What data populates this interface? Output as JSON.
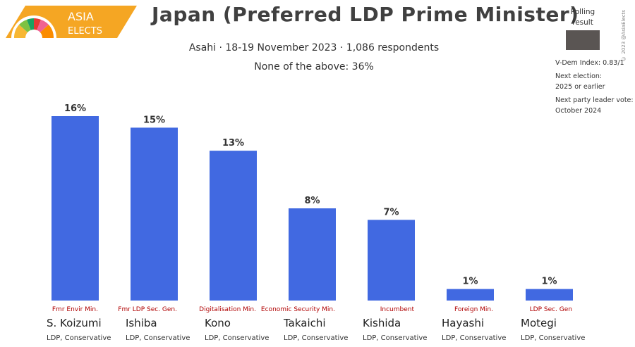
{
  "brand": {
    "line1": "ASIA",
    "line2": "ELECTS"
  },
  "header": {
    "title": "Japan (Preferred LDP Prime Minister)",
    "subtitle": "Asahi · 18-19 November 2023 · 1,086 respondents",
    "note": "None of the above: 36%"
  },
  "legend": {
    "label_line1": "Polling",
    "label_line2": "result",
    "swatch_color": "#5a5553"
  },
  "credit": "© 2023 @AsiaElects",
  "info": {
    "vdem": "V-Dem Index: 0.83/1",
    "next_election_label": "Next election:",
    "next_election_value": "2025 or earlier",
    "next_leader_label": "Next party leader vote:",
    "next_leader_value": "October 2024"
  },
  "colors": {
    "bar": "#4169e1",
    "role": "#b00000"
  },
  "chart_data": {
    "type": "bar",
    "title": "Japan (Preferred LDP Prime Minister)",
    "categories": [
      "S. Koizumi",
      "Ishiba",
      "Kono",
      "Takaichi",
      "Kishida",
      "Hayashi",
      "Motegi"
    ],
    "values": [
      16,
      15,
      13,
      8,
      7,
      1,
      1
    ],
    "value_labels": [
      "16%",
      "15%",
      "13%",
      "8%",
      "7%",
      "1%",
      "1%"
    ],
    "parties": [
      "LDP, Conservative",
      "LDP, Conservative",
      "LDP, Conservative",
      "LDP, Conservative",
      "LDP, Conservative",
      "LDP, Conservative",
      "LDP, Conservative"
    ],
    "roles": [
      "Fmr Envir Min.",
      "Fmr LDP Sec. Gen.",
      "Digitalisation Min.",
      "Economic Security Min.",
      "Incumbent",
      "Foreign Min.",
      "LDP Sec. Gen"
    ],
    "unit": "%",
    "grid": false,
    "legend": "top-right"
  }
}
